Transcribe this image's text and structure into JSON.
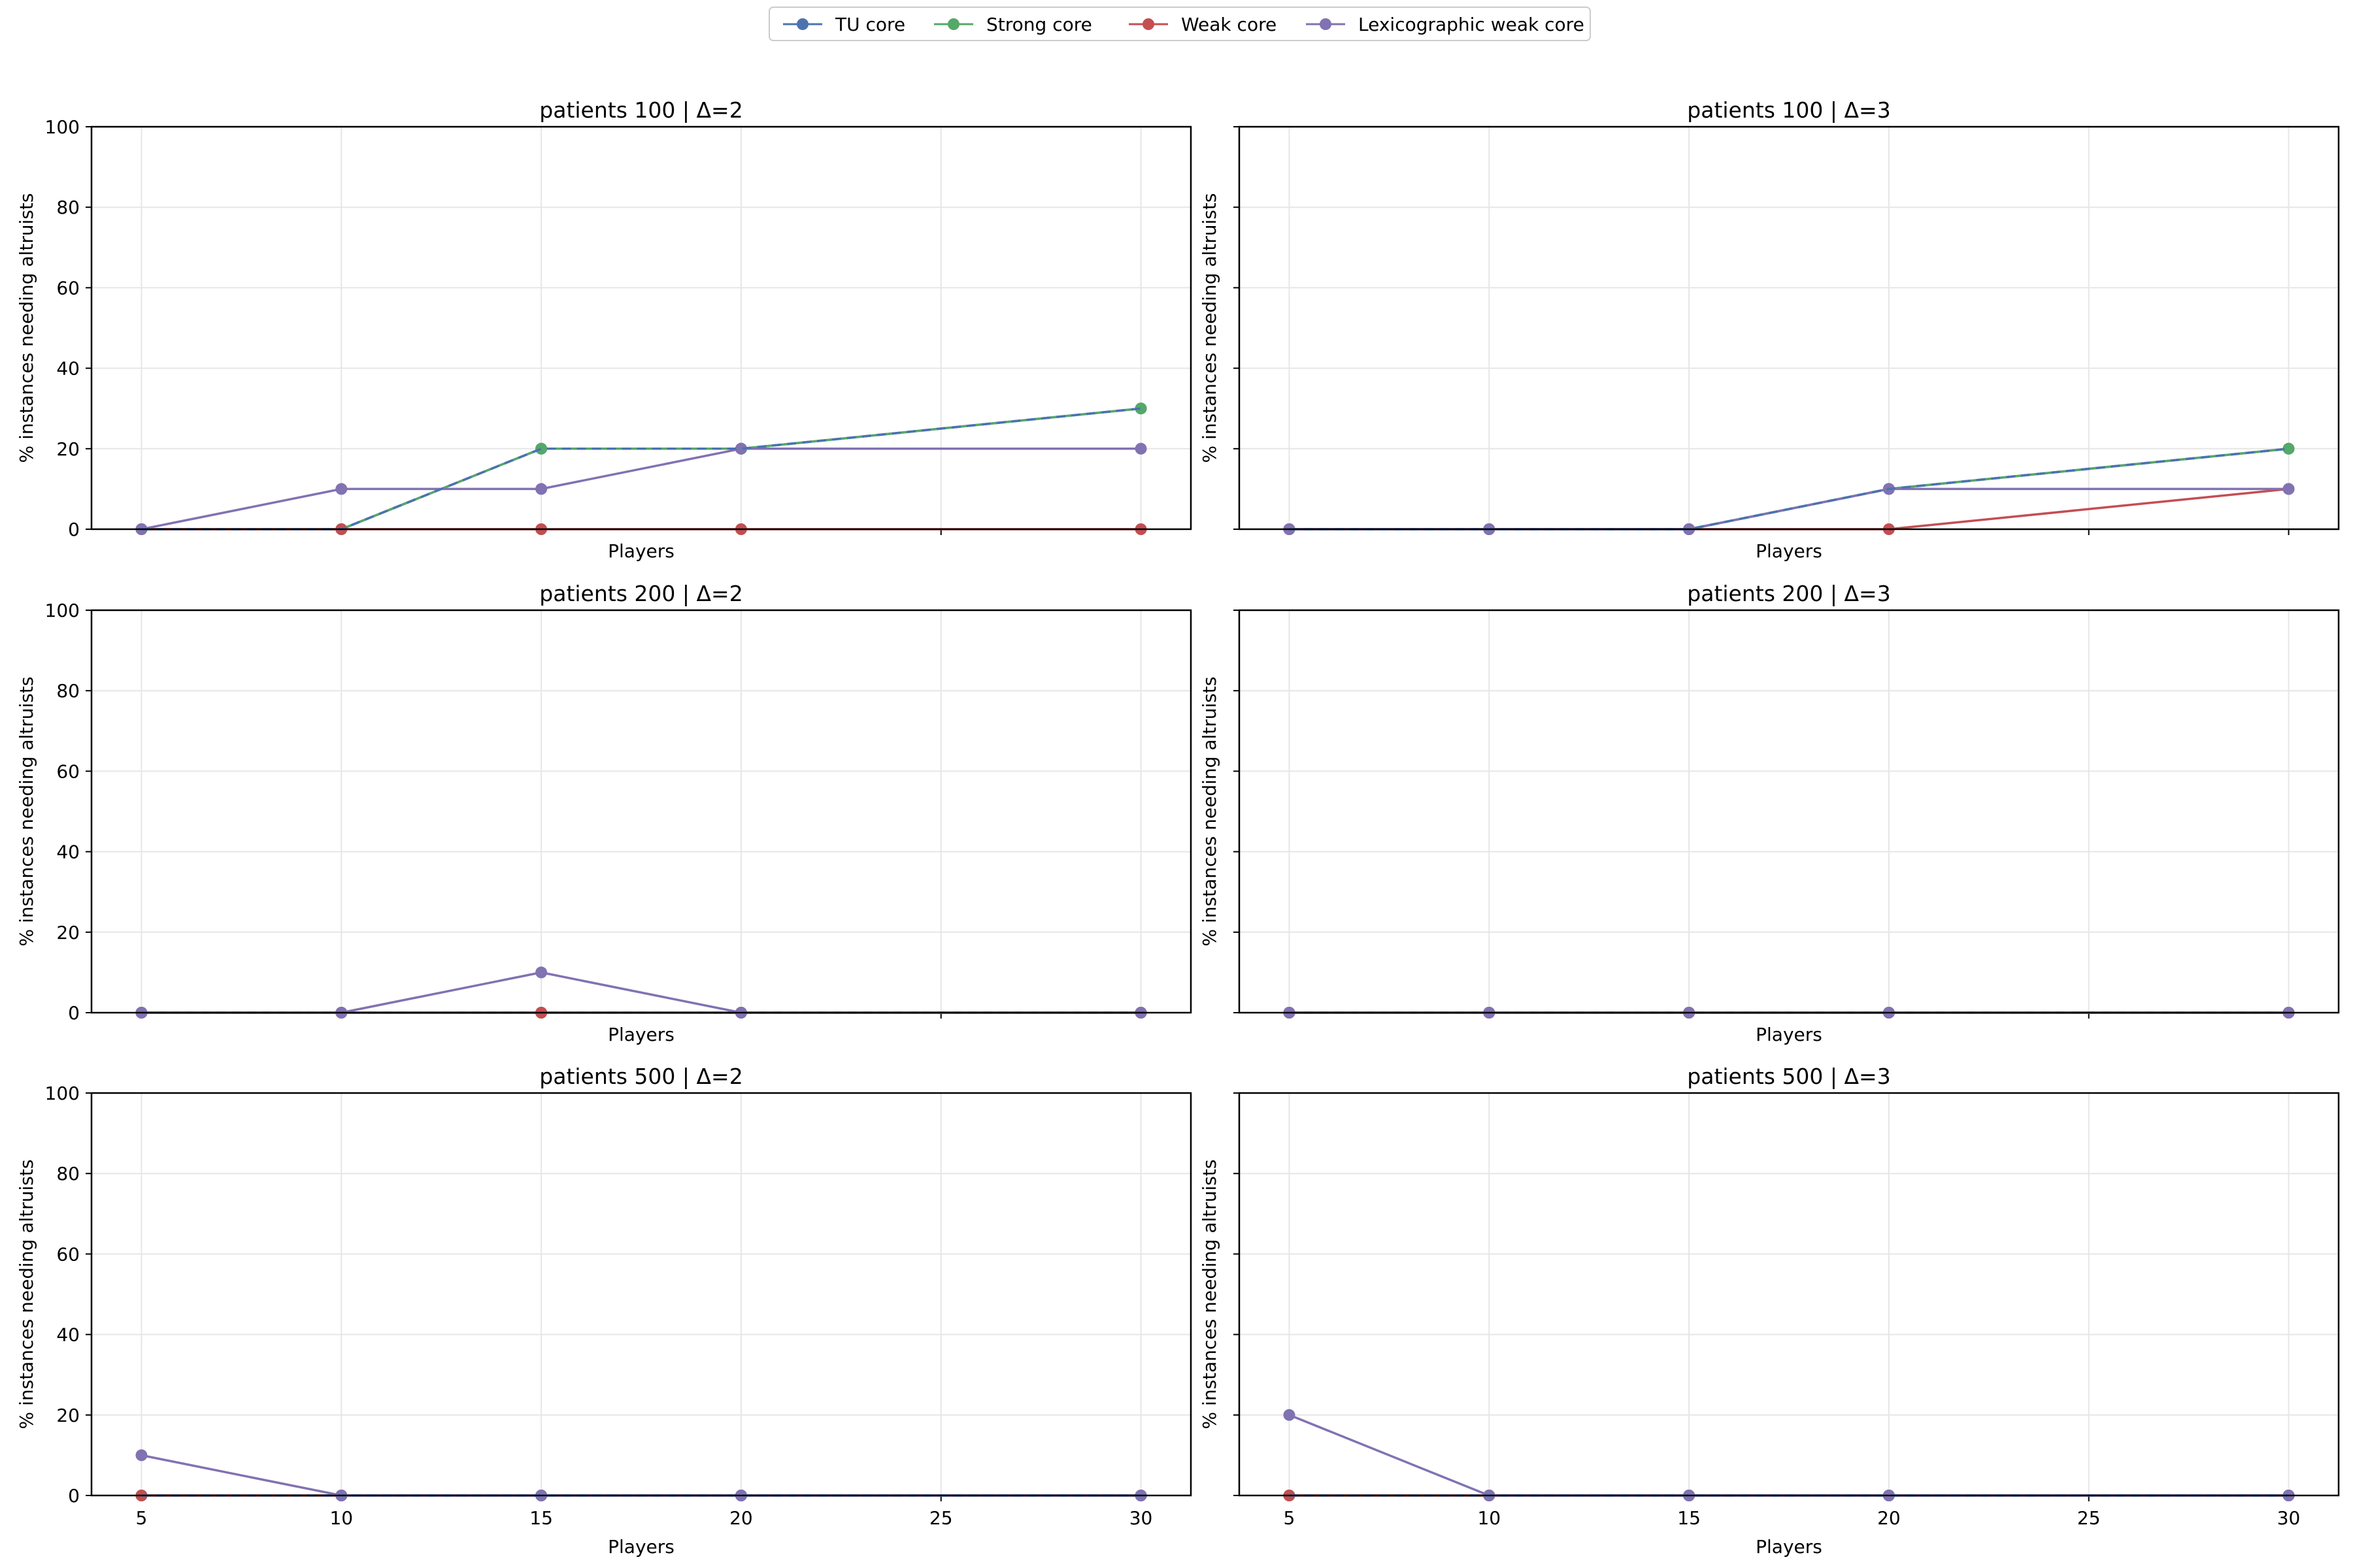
{
  "legend": {
    "placement": "top-center",
    "entries": [
      {
        "name": "TU core",
        "color": "#4c72b0"
      },
      {
        "name": "Strong core",
        "color": "#55a868"
      },
      {
        "name": "Weak core",
        "color": "#c44e52"
      },
      {
        "name": "Lexicographic weak core",
        "color": "#8172b2"
      }
    ]
  },
  "chart_data": [
    {
      "type": "line",
      "title": "patients 100 | Δ=2",
      "xlabel": "Players",
      "ylabel": "% instances needing altruists",
      "x": [
        5,
        10,
        15,
        20,
        30
      ],
      "xlim": [
        3.75,
        31.25
      ],
      "ylim": [
        0,
        100
      ],
      "xticks": [
        "5",
        "10",
        "15",
        "20",
        "25",
        "30"
      ],
      "yticks": [
        "0",
        "20",
        "40",
        "60",
        "80",
        "100"
      ],
      "grid": true,
      "series": [
        {
          "name": "TU core",
          "values": [
            0,
            0,
            20,
            20,
            30
          ]
        },
        {
          "name": "Strong core",
          "values": [
            0,
            0,
            20,
            20,
            30
          ]
        },
        {
          "name": "Weak core",
          "values": [
            0,
            0,
            0,
            0,
            0
          ]
        },
        {
          "name": "Lexicographic weak core",
          "values": [
            0,
            10,
            10,
            20,
            20
          ]
        }
      ]
    },
    {
      "type": "line",
      "title": "patients 100 | Δ=3",
      "xlabel": "Players",
      "ylabel": "% instances needing altruists",
      "x": [
        5,
        10,
        15,
        20,
        30
      ],
      "xlim": [
        3.75,
        31.25
      ],
      "ylim": [
        0,
        100
      ],
      "xticks": [
        "5",
        "10",
        "15",
        "20",
        "25",
        "30"
      ],
      "yticks": [],
      "grid": true,
      "series": [
        {
          "name": "TU core",
          "values": [
            0,
            0,
            0,
            10,
            20
          ]
        },
        {
          "name": "Strong core",
          "values": [
            0,
            0,
            0,
            10,
            20
          ]
        },
        {
          "name": "Weak core",
          "values": [
            0,
            0,
            0,
            0,
            10
          ]
        },
        {
          "name": "Lexicographic weak core",
          "values": [
            0,
            0,
            0,
            10,
            10
          ]
        }
      ]
    },
    {
      "type": "line",
      "title": "patients 200 | Δ=2",
      "xlabel": "Players",
      "ylabel": "% instances needing altruists",
      "x": [
        5,
        10,
        15,
        20,
        30
      ],
      "xlim": [
        3.75,
        31.25
      ],
      "ylim": [
        0,
        100
      ],
      "xticks": [
        "5",
        "10",
        "15",
        "20",
        "25",
        "30"
      ],
      "yticks": [
        "0",
        "20",
        "40",
        "60",
        "80",
        "100"
      ],
      "grid": true,
      "series": [
        {
          "name": "TU core",
          "values": [
            0,
            0,
            0,
            0,
            0
          ]
        },
        {
          "name": "Strong core",
          "values": [
            0,
            0,
            0,
            0,
            0
          ]
        },
        {
          "name": "Weak core",
          "values": [
            0,
            0,
            0,
            0,
            0
          ]
        },
        {
          "name": "Lexicographic weak core",
          "values": [
            0,
            0,
            10,
            0,
            0
          ]
        }
      ]
    },
    {
      "type": "line",
      "title": "patients 200 | Δ=3",
      "xlabel": "Players",
      "ylabel": "% instances needing altruists",
      "x": [
        5,
        10,
        15,
        20,
        30
      ],
      "xlim": [
        3.75,
        31.25
      ],
      "ylim": [
        0,
        100
      ],
      "xticks": [
        "5",
        "10",
        "15",
        "20",
        "25",
        "30"
      ],
      "yticks": [],
      "grid": true,
      "series": [
        {
          "name": "TU core",
          "values": [
            0,
            0,
            0,
            0,
            0
          ]
        },
        {
          "name": "Strong core",
          "values": [
            0,
            0,
            0,
            0,
            0
          ]
        },
        {
          "name": "Weak core",
          "values": [
            0,
            0,
            0,
            0,
            0
          ]
        },
        {
          "name": "Lexicographic weak core",
          "values": [
            0,
            0,
            0,
            0,
            0
          ]
        }
      ]
    },
    {
      "type": "line",
      "title": "patients 500 | Δ=2",
      "xlabel": "Players",
      "ylabel": "% instances needing altruists",
      "x": [
        5,
        10,
        15,
        20,
        30
      ],
      "xlim": [
        3.75,
        31.25
      ],
      "ylim": [
        0,
        100
      ],
      "xticks": [
        "5",
        "10",
        "15",
        "20",
        "25",
        "30"
      ],
      "yticks": [
        "0",
        "20",
        "40",
        "60",
        "80",
        "100"
      ],
      "grid": true,
      "series": [
        {
          "name": "TU core",
          "values": [
            0,
            0,
            0,
            0,
            0
          ]
        },
        {
          "name": "Strong core",
          "values": [
            0,
            0,
            0,
            0,
            0
          ]
        },
        {
          "name": "Weak core",
          "values": [
            0,
            0,
            0,
            0,
            0
          ]
        },
        {
          "name": "Lexicographic weak core",
          "values": [
            10,
            0,
            0,
            0,
            0
          ]
        }
      ]
    },
    {
      "type": "line",
      "title": "patients 500 | Δ=3",
      "xlabel": "Players",
      "ylabel": "% instances needing altruists",
      "x": [
        5,
        10,
        15,
        20,
        30
      ],
      "xlim": [
        3.75,
        31.25
      ],
      "ylim": [
        0,
        100
      ],
      "xticks": [
        "5",
        "10",
        "15",
        "20",
        "25",
        "30"
      ],
      "yticks": [],
      "grid": true,
      "series": [
        {
          "name": "TU core",
          "values": [
            0,
            0,
            0,
            0,
            0
          ]
        },
        {
          "name": "Strong core",
          "values": [
            0,
            0,
            0,
            0,
            0
          ]
        },
        {
          "name": "Weak core",
          "values": [
            0,
            0,
            0,
            0,
            0
          ]
        },
        {
          "name": "Lexicographic weak core",
          "values": [
            20,
            0,
            0,
            0,
            0
          ]
        }
      ]
    }
  ]
}
